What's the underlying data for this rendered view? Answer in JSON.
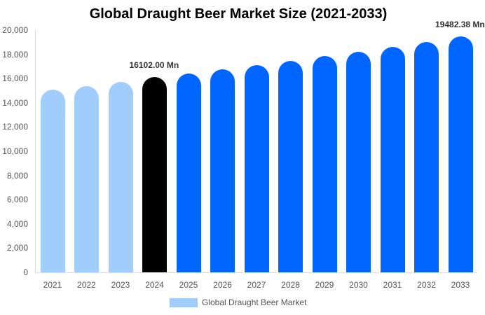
{
  "chart_data": {
    "type": "bar",
    "title": "Global Draught Beer Market Size (2021-2033)",
    "xlabel": "",
    "ylabel": "",
    "ylim": [
      0,
      20000
    ],
    "yticks": [
      "0",
      "2,000",
      "4,000",
      "6,000",
      "8,000",
      "10,000",
      "12,000",
      "14,000",
      "16,000",
      "18,000",
      "20,000"
    ],
    "categories": [
      "2021",
      "2022",
      "2023",
      "2024",
      "2025",
      "2026",
      "2027",
      "2028",
      "2029",
      "2030",
      "2031",
      "2032",
      "2033"
    ],
    "series": [
      {
        "name": "Global Draught Beer Market",
        "values": [
          15090,
          15380,
          15720,
          16102,
          16420,
          16760,
          17110,
          17460,
          17860,
          18210,
          18610,
          19020,
          19482.38
        ]
      }
    ],
    "bar_colors": [
      "#a1cdfd",
      "#a1cdfd",
      "#a1cdfd",
      "#000000",
      "#0066ff",
      "#0066ff",
      "#0066ff",
      "#0066ff",
      "#0066ff",
      "#0066ff",
      "#0066ff",
      "#0066ff",
      "#0066ff"
    ],
    "annotations": [
      {
        "category": "2024",
        "text": "16102.00 Mn"
      },
      {
        "category": "2033",
        "text": "19482.38 Mn"
      }
    ],
    "grid": false,
    "legend_position": "bottom"
  }
}
